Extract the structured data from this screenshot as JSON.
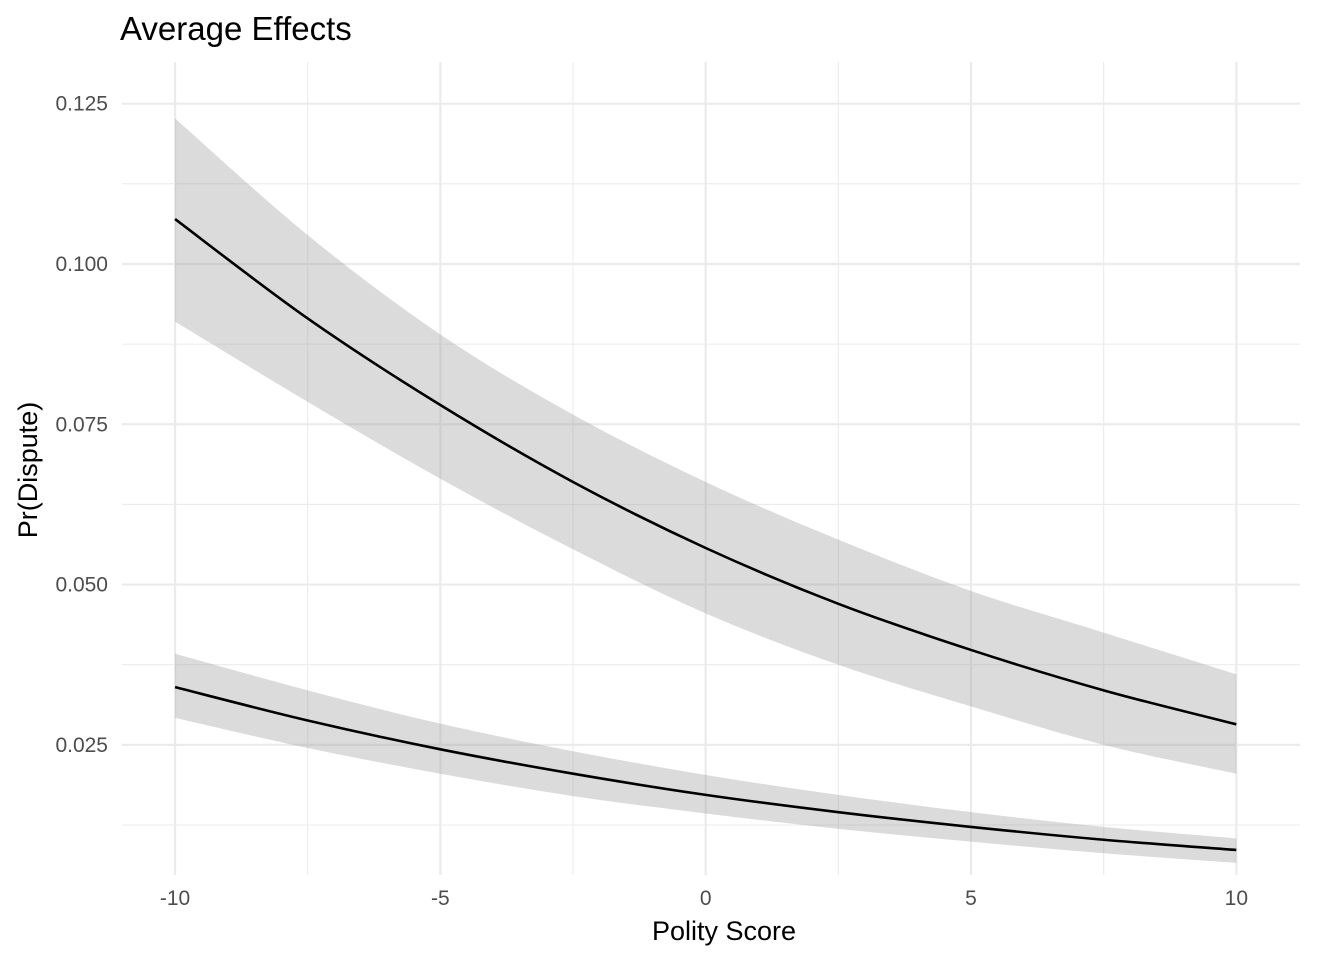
{
  "chart_data": {
    "type": "line",
    "title": "Average Effects",
    "xlabel": "Polity Score",
    "ylabel": "Pr(Dispute)",
    "xlim": [
      -11,
      11.2
    ],
    "ylim": [
      0.0047,
      0.1315
    ],
    "x_ticks": [
      -10,
      -5,
      0,
      5,
      10
    ],
    "x_tick_labels": [
      "-10",
      "-5",
      "0",
      "5",
      "10"
    ],
    "x_minor_ticks": [
      -7.5,
      -2.5,
      2.5,
      7.5
    ],
    "y_ticks": [
      0.025,
      0.05,
      0.075,
      0.1,
      0.125
    ],
    "y_tick_labels": [
      "0.025",
      "0.050",
      "0.075",
      "0.100",
      "0.125"
    ],
    "y_minor_ticks": [
      0.0125,
      0.0375,
      0.0625,
      0.0875,
      0.1125
    ],
    "grid": true,
    "legend": "none",
    "colors": {
      "line": "#000000",
      "ribbon": "#d9d9d9",
      "grid": "#ebebeb"
    },
    "series": [
      {
        "x": [
          -10,
          -7.5,
          -5,
          -2.5,
          0,
          2.5,
          5,
          7.5,
          10
        ],
        "y": [
          0.107,
          0.0915,
          0.078,
          0.066,
          0.0557,
          0.047,
          0.0398,
          0.0335,
          0.0282
        ],
        "lower": [
          0.091,
          0.0785,
          0.0665,
          0.0555,
          0.0455,
          0.0375,
          0.031,
          0.025,
          0.0205
        ],
        "upper": [
          0.1227,
          0.1045,
          0.089,
          0.0765,
          0.066,
          0.057,
          0.049,
          0.0425,
          0.036
        ]
      },
      {
        "x": [
          -10,
          -7.5,
          -5,
          -2.5,
          0,
          2.5,
          5,
          7.5,
          10
        ],
        "y": [
          0.034,
          0.0288,
          0.0243,
          0.0205,
          0.0172,
          0.0145,
          0.0122,
          0.0102,
          0.0086
        ],
        "lower": [
          0.0292,
          0.0245,
          0.0205,
          0.017,
          0.0143,
          0.0119,
          0.0099,
          0.0081,
          0.0066
        ],
        "upper": [
          0.0392,
          0.0335,
          0.0283,
          0.024,
          0.0203,
          0.0172,
          0.0145,
          0.0122,
          0.0104
        ]
      }
    ]
  }
}
